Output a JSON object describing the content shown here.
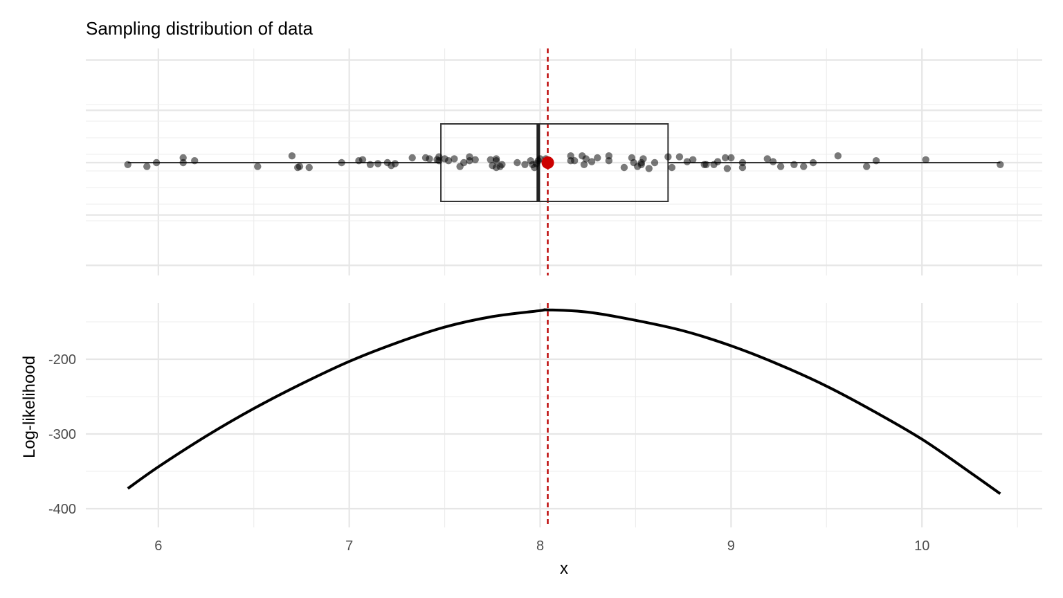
{
  "chart_data": [
    {
      "type": "boxplot-jitter",
      "title": "Sampling distribution of data",
      "xlim": [
        5.62,
        10.63
      ],
      "grid": true,
      "box": {
        "min": 5.84,
        "q1": 7.48,
        "median": 7.99,
        "q3": 8.67,
        "max": 10.41
      },
      "mean": 8.04,
      "mean_color": "#cc0000",
      "vline": {
        "x": 8.04,
        "style": "dashed",
        "color": "#bb0000"
      },
      "points": [
        {
          "x": 5.84,
          "y": -0.02
        },
        {
          "x": 5.94,
          "y": -0.04
        },
        {
          "x": 5.99,
          "y": 0.0
        },
        {
          "x": 6.13,
          "y": 0.05
        },
        {
          "x": 6.13,
          "y": 0.0
        },
        {
          "x": 6.19,
          "y": 0.02
        },
        {
          "x": 6.52,
          "y": -0.04
        },
        {
          "x": 6.7,
          "y": 0.07
        },
        {
          "x": 6.73,
          "y": -0.05
        },
        {
          "x": 6.74,
          "y": -0.04
        },
        {
          "x": 6.79,
          "y": -0.05
        },
        {
          "x": 6.96,
          "y": 0.0
        },
        {
          "x": 7.05,
          "y": 0.02
        },
        {
          "x": 7.07,
          "y": 0.03
        },
        {
          "x": 7.11,
          "y": -0.02
        },
        {
          "x": 7.15,
          "y": -0.01
        },
        {
          "x": 7.2,
          "y": 0.0
        },
        {
          "x": 7.22,
          "y": -0.03
        },
        {
          "x": 7.24,
          "y": -0.01
        },
        {
          "x": 7.33,
          "y": 0.05
        },
        {
          "x": 7.4,
          "y": 0.05
        },
        {
          "x": 7.42,
          "y": 0.04
        },
        {
          "x": 7.46,
          "y": 0.03
        },
        {
          "x": 7.47,
          "y": 0.02
        },
        {
          "x": 7.47,
          "y": 0.06
        },
        {
          "x": 7.5,
          "y": 0.04
        },
        {
          "x": 7.52,
          "y": 0.02
        },
        {
          "x": 7.55,
          "y": 0.04
        },
        {
          "x": 7.58,
          "y": -0.04
        },
        {
          "x": 7.6,
          "y": 0.0
        },
        {
          "x": 7.63,
          "y": 0.06
        },
        {
          "x": 7.63,
          "y": 0.02
        },
        {
          "x": 7.66,
          "y": 0.03
        },
        {
          "x": 7.74,
          "y": 0.03
        },
        {
          "x": 7.75,
          "y": -0.03
        },
        {
          "x": 7.77,
          "y": 0.04
        },
        {
          "x": 7.77,
          "y": 0.02
        },
        {
          "x": 7.77,
          "y": -0.05
        },
        {
          "x": 7.79,
          "y": -0.04
        },
        {
          "x": 7.8,
          "y": -0.02
        },
        {
          "x": 7.88,
          "y": 0.0
        },
        {
          "x": 7.92,
          "y": -0.02
        },
        {
          "x": 7.95,
          "y": 0.02
        },
        {
          "x": 7.96,
          "y": -0.02
        },
        {
          "x": 7.97,
          "y": -0.05
        },
        {
          "x": 7.98,
          "y": -0.01
        },
        {
          "x": 7.99,
          "y": 0.02
        },
        {
          "x": 8.0,
          "y": 0.04
        },
        {
          "x": 8.03,
          "y": 0.04
        },
        {
          "x": 8.16,
          "y": 0.07
        },
        {
          "x": 8.16,
          "y": 0.02
        },
        {
          "x": 8.18,
          "y": 0.02
        },
        {
          "x": 8.22,
          "y": 0.07
        },
        {
          "x": 8.23,
          "y": -0.02
        },
        {
          "x": 8.24,
          "y": 0.04
        },
        {
          "x": 8.27,
          "y": 0.01
        },
        {
          "x": 8.3,
          "y": 0.05
        },
        {
          "x": 8.36,
          "y": 0.02
        },
        {
          "x": 8.36,
          "y": 0.07
        },
        {
          "x": 8.44,
          "y": -0.05
        },
        {
          "x": 8.48,
          "y": 0.05
        },
        {
          "x": 8.49,
          "y": 0.0
        },
        {
          "x": 8.51,
          "y": -0.04
        },
        {
          "x": 8.53,
          "y": -0.02
        },
        {
          "x": 8.53,
          "y": 0.0
        },
        {
          "x": 8.54,
          "y": 0.04
        },
        {
          "x": 8.57,
          "y": -0.06
        },
        {
          "x": 8.6,
          "y": 0.0
        },
        {
          "x": 8.67,
          "y": 0.06
        },
        {
          "x": 8.69,
          "y": -0.05
        },
        {
          "x": 8.73,
          "y": 0.06
        },
        {
          "x": 8.77,
          "y": 0.01
        },
        {
          "x": 8.8,
          "y": 0.03
        },
        {
          "x": 8.86,
          "y": -0.02
        },
        {
          "x": 8.87,
          "y": -0.02
        },
        {
          "x": 8.91,
          "y": -0.02
        },
        {
          "x": 8.93,
          "y": 0.01
        },
        {
          "x": 8.97,
          "y": 0.05
        },
        {
          "x": 8.98,
          "y": -0.06
        },
        {
          "x": 9.0,
          "y": 0.05
        },
        {
          "x": 9.06,
          "y": 0.0
        },
        {
          "x": 9.06,
          "y": -0.05
        },
        {
          "x": 9.19,
          "y": 0.04
        },
        {
          "x": 9.22,
          "y": 0.01
        },
        {
          "x": 9.26,
          "y": -0.04
        },
        {
          "x": 9.33,
          "y": -0.02
        },
        {
          "x": 9.38,
          "y": -0.04
        },
        {
          "x": 9.43,
          "y": 0.0
        },
        {
          "x": 9.56,
          "y": 0.07
        },
        {
          "x": 9.71,
          "y": -0.04
        },
        {
          "x": 9.76,
          "y": 0.02
        },
        {
          "x": 10.02,
          "y": 0.03
        },
        {
          "x": 10.41,
          "y": -0.02
        }
      ]
    },
    {
      "type": "line",
      "title": "",
      "xlabel": "x",
      "ylabel": "Log-likelihood",
      "xlim": [
        5.62,
        10.63
      ],
      "ylim": [
        -425,
        -125
      ],
      "grid": true,
      "x_ticks": [
        6,
        7,
        8,
        9,
        10
      ],
      "x_tick_labels": [
        "6",
        "7",
        "8",
        "9",
        "10"
      ],
      "y_ticks": [
        -200,
        -300,
        -400
      ],
      "y_tick_labels": [
        "-200",
        "-300",
        "-400"
      ],
      "line_color": "#000000",
      "vline": {
        "x": 8.04,
        "style": "dashed",
        "color": "#bb0000"
      },
      "series": [
        {
          "x": [
            5.84,
            6.0,
            6.25,
            6.5,
            6.75,
            7.0,
            7.25,
            7.5,
            7.75,
            8.0,
            8.04,
            8.25,
            8.5,
            8.75,
            9.0,
            9.25,
            9.5,
            9.75,
            10.0,
            10.25,
            10.41
          ],
          "values": [
            -373,
            -344,
            -303,
            -266,
            -233,
            -203,
            -178,
            -157,
            -143,
            -135,
            -134,
            -137,
            -148,
            -162,
            -182,
            -207,
            -236,
            -270,
            -307,
            -351,
            -380
          ]
        }
      ]
    }
  ]
}
